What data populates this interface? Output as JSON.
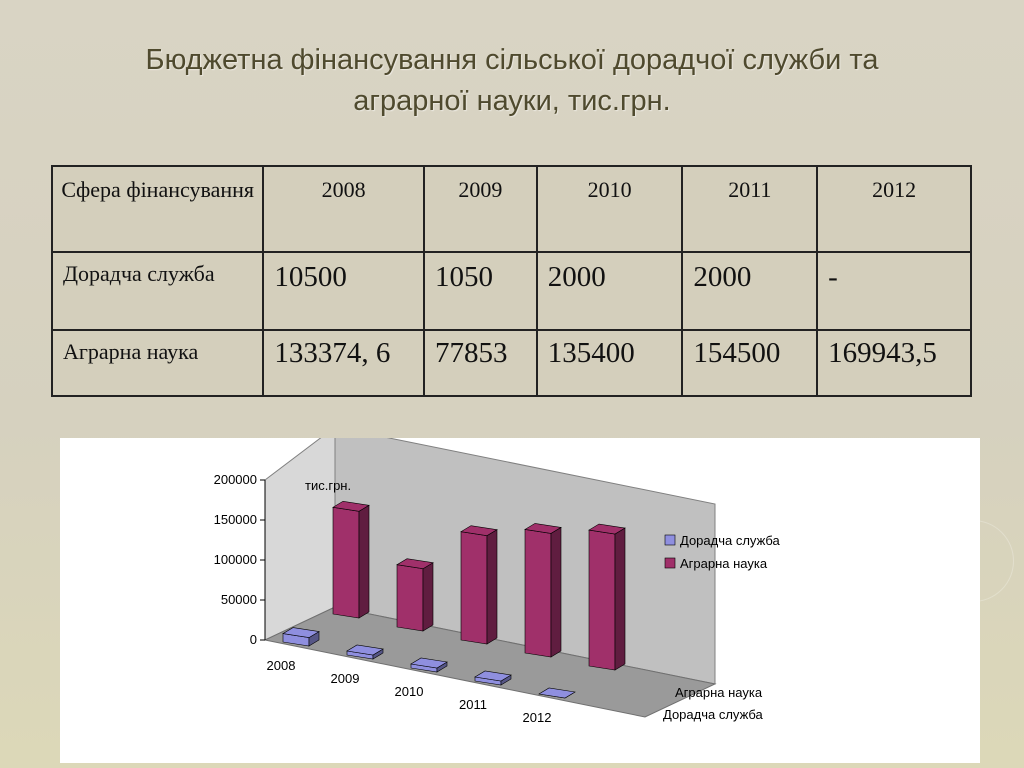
{
  "title": {
    "line1": "Бюджетна фінансування сільської дорадчої служби та",
    "line2": "аграрної науки, тис.грн."
  },
  "table": {
    "header_label": "Сфера фінансування",
    "years": [
      "2008",
      "2009",
      "2010",
      "2011",
      "2012"
    ],
    "rows": [
      {
        "label": "Дорадча служба",
        "values": [
          "10500",
          "1050",
          "2000",
          "2000",
          "-"
        ]
      },
      {
        "label": "Аграрна наука",
        "values": [
          "133374, 6",
          "77853",
          "135400",
          "154500",
          "169943,5"
        ]
      }
    ]
  },
  "chart_data": {
    "type": "bar",
    "title": "",
    "unit_label": "тис.грн.",
    "categories": [
      "2008",
      "2009",
      "2010",
      "2011",
      "2012"
    ],
    "series": [
      {
        "name": "Дорадча служба",
        "values": [
          10500,
          1050,
          2000,
          2000,
          0
        ],
        "color": "#8f8fdf"
      },
      {
        "name": "Аграрна наука",
        "values": [
          133374.6,
          77853,
          135400,
          154500,
          169943.5
        ],
        "color": "#a0306a"
      }
    ],
    "ylim": [
      0,
      200000
    ],
    "yticks": [
      "0",
      "50000",
      "100000",
      "150000",
      "200000"
    ],
    "depth_labels": [
      "Аграрна наука",
      "Дорадча служба"
    ],
    "legend_position": "right",
    "grid": false,
    "style": "3d-columns"
  }
}
